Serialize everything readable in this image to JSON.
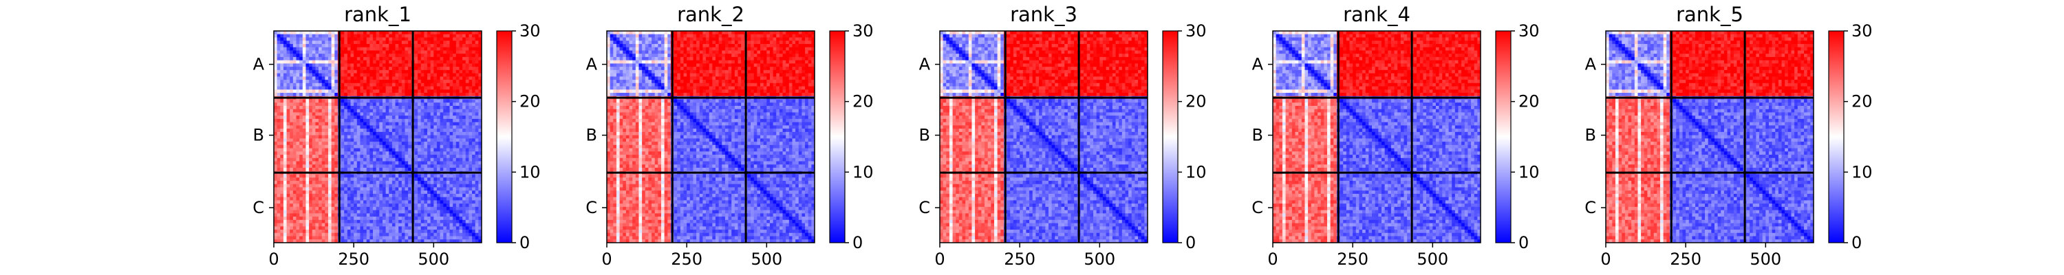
{
  "chart_data": [
    {
      "type": "heatmap",
      "title": "rank_1",
      "chains": [
        "A",
        "B",
        "C"
      ],
      "chain_boundaries": [
        0,
        205,
        435,
        650
      ],
      "x_ticks": [
        0,
        250,
        500
      ],
      "x_range": [
        0,
        650
      ],
      "colorbar": {
        "min": 0,
        "max": 30,
        "ticks": [
          0,
          10,
          20,
          30
        ],
        "colormap": "bwr"
      },
      "block_means": [
        [
          8,
          29,
          29
        ],
        [
          24,
          6,
          6
        ],
        [
          24,
          6,
          6
        ]
      ]
    },
    {
      "type": "heatmap",
      "title": "rank_2",
      "chains": [
        "A",
        "B",
        "C"
      ],
      "chain_boundaries": [
        0,
        205,
        435,
        650
      ],
      "x_ticks": [
        0,
        250,
        500
      ],
      "x_range": [
        0,
        650
      ],
      "colorbar": {
        "min": 0,
        "max": 30,
        "ticks": [
          0,
          10,
          20,
          30
        ],
        "colormap": "bwr"
      },
      "block_means": [
        [
          8,
          29,
          29
        ],
        [
          24,
          6,
          6
        ],
        [
          24,
          6,
          6
        ]
      ]
    },
    {
      "type": "heatmap",
      "title": "rank_3",
      "chains": [
        "A",
        "B",
        "C"
      ],
      "chain_boundaries": [
        0,
        205,
        435,
        650
      ],
      "x_ticks": [
        0,
        250,
        500
      ],
      "x_range": [
        0,
        650
      ],
      "colorbar": {
        "min": 0,
        "max": 30,
        "ticks": [
          0,
          10,
          20,
          30
        ],
        "colormap": "bwr"
      },
      "block_means": [
        [
          8,
          29,
          29
        ],
        [
          24,
          6,
          6
        ],
        [
          24,
          6,
          6
        ]
      ]
    },
    {
      "type": "heatmap",
      "title": "rank_4",
      "chains": [
        "A",
        "B",
        "C"
      ],
      "chain_boundaries": [
        0,
        205,
        435,
        650
      ],
      "x_ticks": [
        0,
        250,
        500
      ],
      "x_range": [
        0,
        650
      ],
      "colorbar": {
        "min": 0,
        "max": 30,
        "ticks": [
          0,
          10,
          20,
          30
        ],
        "colormap": "bwr"
      },
      "block_means": [
        [
          8,
          29,
          29
        ],
        [
          24,
          6,
          6
        ],
        [
          24,
          6,
          6
        ]
      ]
    },
    {
      "type": "heatmap",
      "title": "rank_5",
      "chains": [
        "A",
        "B",
        "C"
      ],
      "chain_boundaries": [
        0,
        205,
        435,
        650
      ],
      "x_ticks": [
        0,
        250,
        500
      ],
      "x_range": [
        0,
        650
      ],
      "colorbar": {
        "min": 0,
        "max": 30,
        "ticks": [
          0,
          10,
          20,
          30
        ],
        "colormap": "bwr"
      },
      "block_means": [
        [
          8,
          29,
          29
        ],
        [
          24,
          6,
          6
        ],
        [
          24,
          6,
          6
        ]
      ]
    }
  ]
}
